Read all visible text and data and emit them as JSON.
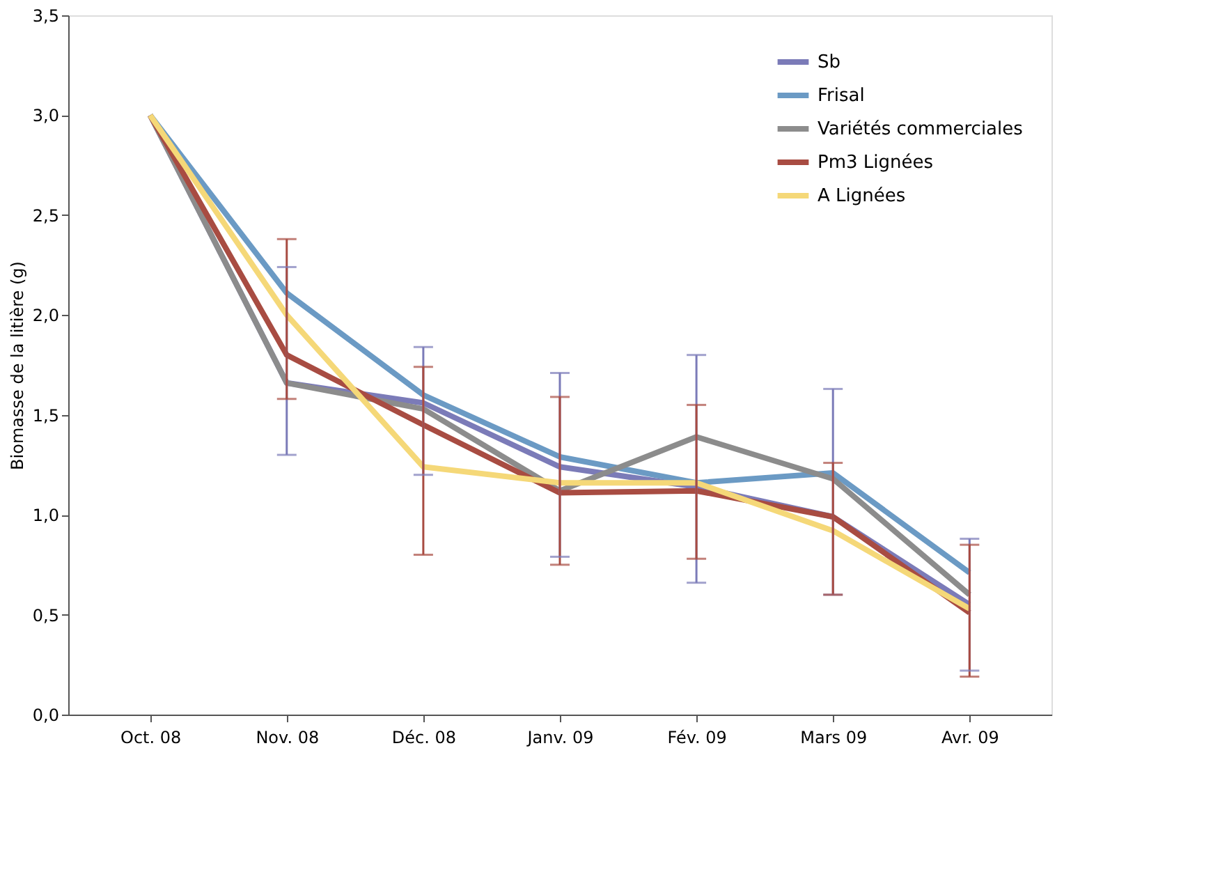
{
  "chart_data": {
    "type": "line",
    "ylabel": "Biomasse de la litière (g)",
    "categories": [
      "Oct. 08",
      "Nov. 08",
      "Déc. 08",
      "Janv. 09",
      "Fév. 09",
      "Mars 09",
      "Avr. 09"
    ],
    "ylim": [
      0,
      3.5
    ],
    "yticks": [
      {
        "value": 0,
        "label": "0,0"
      },
      {
        "value": 0.5,
        "label": "0,5"
      },
      {
        "value": 1,
        "label": "1,0"
      },
      {
        "value": 1.5,
        "label": "1,5"
      },
      {
        "value": 2,
        "label": "2,0"
      },
      {
        "value": 2.5,
        "label": "2,5"
      },
      {
        "value": 3,
        "label": "3,0"
      },
      {
        "value": 3.5,
        "label": "3,5"
      }
    ],
    "grid": false,
    "legend": "top right",
    "marker": "none",
    "line_style": "solid",
    "series": [
      {
        "name": "Sb",
        "color": "#7b7bb8",
        "values": [
          3.0,
          1.66,
          1.56,
          1.24,
          1.14,
          0.99,
          0.55
        ],
        "errors": [
          null,
          [
            1.3,
            2.24
          ],
          [
            1.2,
            1.84
          ],
          [
            0.79,
            1.71
          ],
          [
            0.66,
            1.8
          ],
          [
            0.6,
            1.63
          ],
          [
            0.22,
            0.88
          ]
        ]
      },
      {
        "name": "Frisal",
        "color": "#6b9ac4",
        "values": [
          3.0,
          2.11,
          1.6,
          1.29,
          1.16,
          1.21,
          0.71
        ]
      },
      {
        "name": "Variétés commerciales",
        "color": "#8c8c8c",
        "values": [
          3.0,
          1.66,
          1.53,
          1.12,
          1.39,
          1.18,
          0.6
        ]
      },
      {
        "name": "Pm3 Lignées",
        "color": "#a84c42",
        "values": [
          3.0,
          1.8,
          1.45,
          1.11,
          1.12,
          0.99,
          0.51
        ],
        "errors": [
          null,
          [
            1.58,
            2.38
          ],
          [
            0.8,
            1.74
          ],
          [
            0.75,
            1.59
          ],
          [
            0.78,
            1.55
          ],
          [
            0.6,
            1.26
          ],
          [
            0.19,
            0.85
          ]
        ]
      },
      {
        "name": "A Lignées",
        "color": "#f5d878",
        "values": [
          3.0,
          2.0,
          1.24,
          1.16,
          1.16,
          0.92,
          0.53
        ]
      }
    ]
  }
}
